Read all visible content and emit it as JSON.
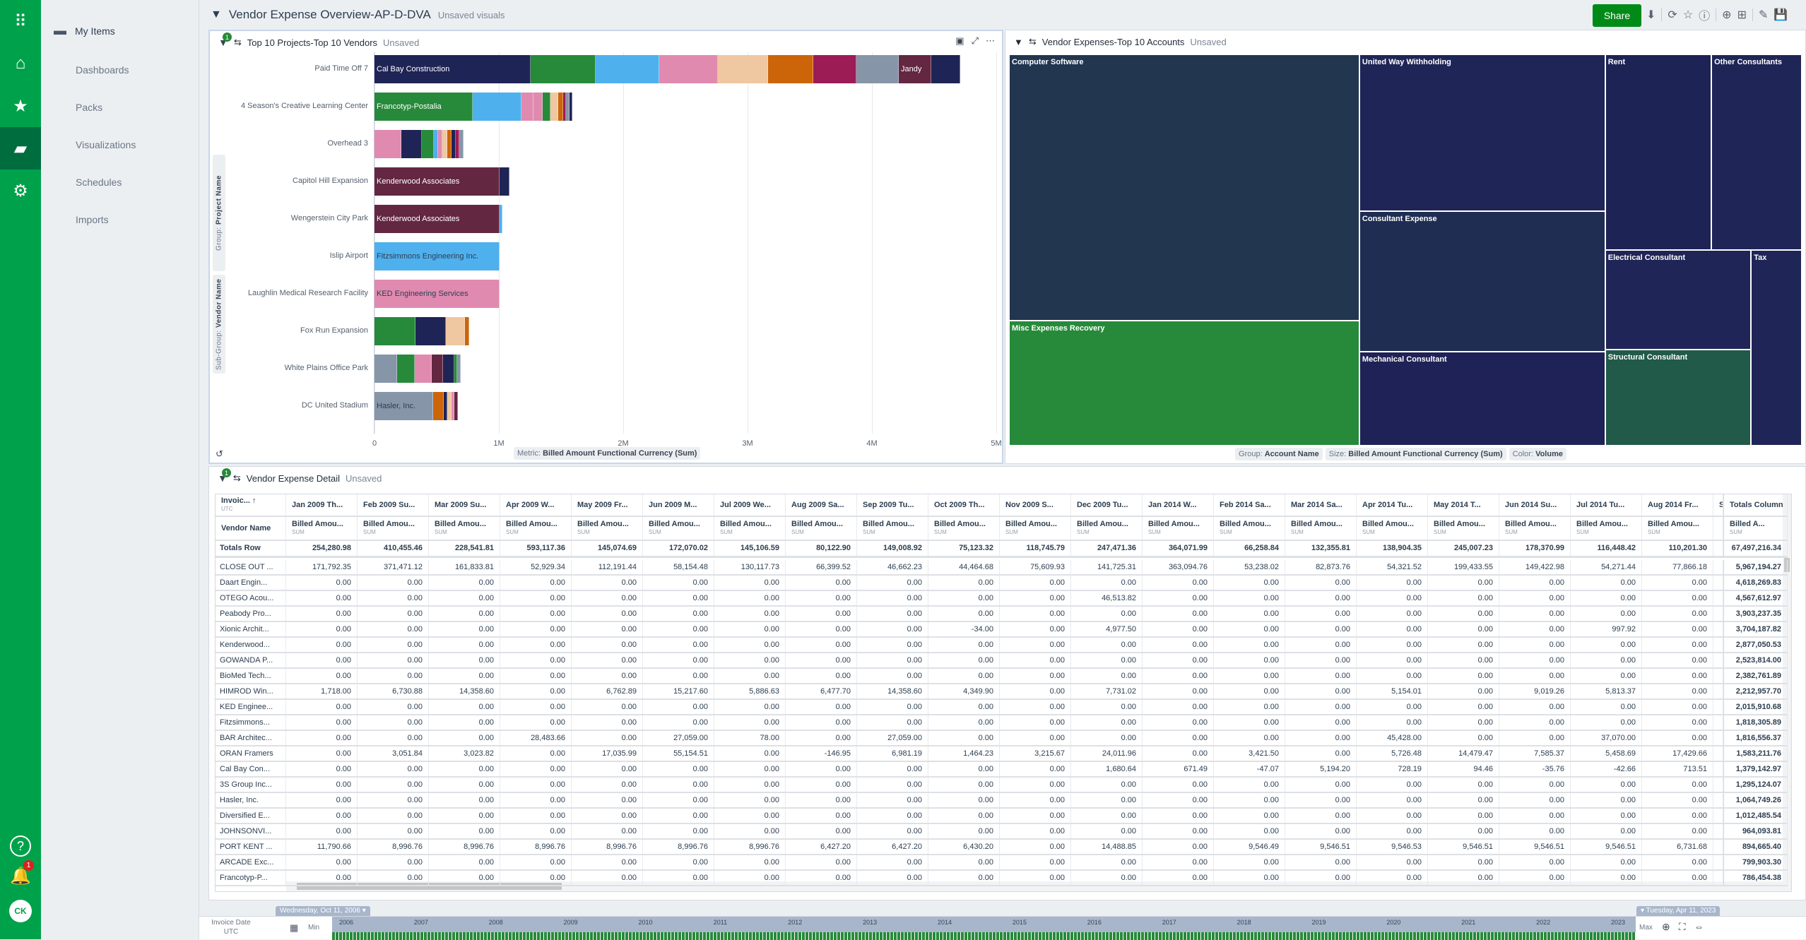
{
  "rail": {
    "icons": [
      "apps-grid-icon",
      "home-icon",
      "star-icon",
      "folder-icon",
      "gear-icon"
    ],
    "help": "?",
    "notifications": "1",
    "avatar": "CK"
  },
  "nav": {
    "my_items": "My Items",
    "items": [
      "Dashboards",
      "Packs",
      "Visualizations",
      "Schedules",
      "Imports"
    ]
  },
  "header": {
    "title": "Vendor Expense Overview-AP-D-DVA",
    "status": "Unsaved visuals",
    "share": "Share"
  },
  "colors": {
    "brand": "#00a14b",
    "share": "#008a17",
    "navy": "#1f2456",
    "green": "#278a3a",
    "blue": "#4fb0ee",
    "pink": "#e08ab0",
    "peach": "#efc7a0",
    "orange": "#cc6509",
    "magenta": "#9c1c56",
    "gray": "#8795a8",
    "maroon": "#632742"
  },
  "bar_panel": {
    "title": "Top 10 Projects-Top 10 Vendors",
    "status": "Unsaved",
    "filter_count": "1",
    "group_label": "Group:",
    "group_value": "Project Name",
    "subgroup_label": "Sub-Group:",
    "subgroup_value": "Vendor Name",
    "metric_label": "Metric:",
    "metric_value": "Billed Amount Functional Currency (Sum)"
  },
  "chart_data": {
    "type": "bar",
    "orientation": "horizontal",
    "stacked": true,
    "title": "Top 10 Projects-Top 10 Vendors",
    "xlabel": "Billed Amount Functional Currency (Sum)",
    "ylabel": "Project Name",
    "xlim": [
      0,
      5000000
    ],
    "xticks": [
      "0",
      "1M",
      "2M",
      "3M",
      "4M",
      "5M"
    ],
    "categories": [
      "Paid Time Off 7",
      "4 Season's Creative Learning Center",
      "Overhead 3",
      "Capitol Hill Expansion",
      "Wengerstein City Park",
      "Islip Airport",
      "Laughlin Medical Research Facility",
      "Fox Run Expansion",
      "White Plains Office Park",
      "DC United Stadium"
    ],
    "stacks": [
      [
        {
          "c": "navy",
          "v": 1253000,
          "label": "Cal Bay Construction"
        },
        {
          "c": "green",
          "v": 527000
        },
        {
          "c": "blue",
          "v": 510000
        },
        {
          "c": "pink",
          "v": 469000
        },
        {
          "c": "peach",
          "v": 404000
        },
        {
          "c": "orange",
          "v": 363000
        },
        {
          "c": "magenta",
          "v": 347000
        },
        {
          "c": "gray",
          "v": 343000
        },
        {
          "c": "maroon",
          "v": 261000,
          "label": "Jandy"
        },
        {
          "c": "navy",
          "v": 233000
        }
      ],
      [
        {
          "c": "green",
          "v": 788000,
          "label": "Francotyp-Postalia"
        },
        {
          "c": "blue",
          "v": 396000
        },
        {
          "c": "pink",
          "v": 94000
        },
        {
          "c": "pink",
          "v": 73000
        },
        {
          "c": "green",
          "v": 61000
        },
        {
          "c": "peach",
          "v": 65000
        },
        {
          "c": "orange",
          "v": 41000
        },
        {
          "c": "magenta",
          "v": 24000
        },
        {
          "c": "gray",
          "v": 24000
        },
        {
          "c": "navy",
          "v": 12000
        }
      ],
      [
        {
          "c": "pink",
          "v": 216000
        },
        {
          "c": "navy",
          "v": 167000
        },
        {
          "c": "green",
          "v": 94000
        },
        {
          "c": "blue",
          "v": 37000
        },
        {
          "c": "pink",
          "v": 33000
        },
        {
          "c": "peach",
          "v": 41000
        },
        {
          "c": "orange",
          "v": 33000
        },
        {
          "c": "navy",
          "v": 33000
        },
        {
          "c": "magenta",
          "v": 29000
        },
        {
          "c": "gray",
          "v": 33000
        }
      ],
      [
        {
          "c": "maroon",
          "v": 1004000,
          "label": "Kenderwood Associates"
        },
        {
          "c": "navy",
          "v": 82000
        }
      ],
      [
        {
          "c": "maroon",
          "v": 1008000,
          "label": "Kenderwood Associates"
        },
        {
          "c": "blue",
          "v": 8000
        }
      ],
      [
        {
          "c": "blue",
          "v": 1004000,
          "label": "Fitzsimmons Engineering Inc."
        }
      ],
      [
        {
          "c": "pink",
          "v": 1004000,
          "label": "KED Engineering Services"
        }
      ],
      [
        {
          "c": "green",
          "v": 327000
        },
        {
          "c": "navy",
          "v": 249000
        },
        {
          "c": "peach",
          "v": 151000
        },
        {
          "c": "orange",
          "v": 33000
        }
      ],
      [
        {
          "c": "gray",
          "v": 184000
        },
        {
          "c": "green",
          "v": 139000
        },
        {
          "c": "pink",
          "v": 139000
        },
        {
          "c": "maroon",
          "v": 90000
        },
        {
          "c": "navy",
          "v": 90000
        },
        {
          "c": "green",
          "v": 24000
        },
        {
          "c": "gray",
          "v": 29000
        }
      ],
      [
        {
          "c": "gray",
          "v": 473000,
          "label": "Hasler, Inc."
        },
        {
          "c": "orange",
          "v": 82000
        },
        {
          "c": "navy",
          "v": 33000
        },
        {
          "c": "peach",
          "v": 33000
        },
        {
          "c": "pink",
          "v": 20000
        },
        {
          "c": "maroon",
          "v": 29000
        }
      ]
    ]
  },
  "treemap": {
    "title": "Vendor Expenses-Top 10 Accounts",
    "status": "Unsaved",
    "cells": [
      {
        "name": "Computer Software",
        "color": "#22364f",
        "rank": 1
      },
      {
        "name": "Misc Expenses Recovery",
        "color": "#278a3a",
        "rank": 2
      },
      {
        "name": "United Way Withholding",
        "color": "#1f2556",
        "rank": 3
      },
      {
        "name": "Consultant Expense",
        "color": "#1f2d52",
        "rank": 4
      },
      {
        "name": "Mechanical Consultant",
        "color": "#1f2256",
        "rank": 5
      },
      {
        "name": "Rent",
        "color": "#1e2355",
        "rank": 6
      },
      {
        "name": "Other Consultants",
        "color": "#1f2556",
        "rank": 7
      },
      {
        "name": "Electrical Consultant",
        "color": "#1f2556",
        "rank": 8
      },
      {
        "name": "Structural Consultant",
        "color": "#215a48",
        "rank": 9
      },
      {
        "name": "Tax",
        "color": "#1f2556",
        "rank": 10
      }
    ],
    "group_label": "Group:",
    "group_value": "Account Name",
    "size_label": "Size:",
    "size_value": "Billed Amount Functional Currency (Sum)",
    "color_label": "Color:",
    "color_value": "Volume"
  },
  "table": {
    "title": "Vendor Expense Detail",
    "status": "Unsaved",
    "filter_count": "1",
    "corner_top": "Invoic...",
    "corner_sub": "UTC",
    "corner_bottom": "Vendor Name",
    "months": [
      "Jan 2009 Th...",
      "Feb 2009 Su...",
      "Mar 2009 Su...",
      "Apr 2009 W...",
      "May 2009 Fr...",
      "Jun 2009 M...",
      "Jul 2009 We...",
      "Aug 2009 Sa...",
      "Sep 2009 Tu...",
      "Oct 2009 Th...",
      "Nov 2009 S...",
      "Dec 2009 Tu...",
      "Jan 2014 W...",
      "Feb 2014 Sa...",
      "Mar 2014 Sa...",
      "Apr 2014 Tu...",
      "May 2014 T...",
      "Jun 2014 Su...",
      "Jul 2014 Tu...",
      "Aug 2014 Fr..."
    ],
    "partial_col": "Sep",
    "measure": "Billed Amou...",
    "measure_total": "Billed A...",
    "agg": "SUM",
    "totals_col": "Totals Column",
    "totals_row": {
      "name": "Totals Row",
      "values": [
        "254,280.98",
        "410,455.46",
        "228,541.81",
        "593,117.36",
        "145,074.69",
        "172,070.02",
        "145,106.59",
        "80,122.90",
        "149,008.92",
        "75,123.32",
        "118,745.79",
        "247,471.36",
        "364,071.99",
        "66,258.84",
        "132,355.81",
        "138,904.35",
        "245,007.23",
        "178,370.99",
        "116,448.42",
        "110,201.30"
      ],
      "total": "67,497,216.34"
    },
    "rows": [
      {
        "name": "CLOSE OUT ...",
        "values": [
          "171,792.35",
          "371,471.12",
          "161,833.81",
          "52,929.34",
          "112,191.44",
          "58,154.48",
          "130,117.73",
          "66,399.52",
          "46,662.23",
          "44,464.68",
          "75,609.93",
          "141,725.31",
          "363,094.76",
          "53,238.02",
          "82,873.76",
          "54,321.52",
          "199,433.55",
          "149,422.98",
          "54,271.44",
          "77,866.18"
        ],
        "total": "5,967,194.27"
      },
      {
        "name": "Daart Engin...",
        "values": [
          "0.00",
          "0.00",
          "0.00",
          "0.00",
          "0.00",
          "0.00",
          "0.00",
          "0.00",
          "0.00",
          "0.00",
          "0.00",
          "0.00",
          "0.00",
          "0.00",
          "0.00",
          "0.00",
          "0.00",
          "0.00",
          "0.00",
          "0.00"
        ],
        "total": "4,618,269.83"
      },
      {
        "name": "OTEGO Acou...",
        "values": [
          "0.00",
          "0.00",
          "0.00",
          "0.00",
          "0.00",
          "0.00",
          "0.00",
          "0.00",
          "0.00",
          "0.00",
          "0.00",
          "46,513.82",
          "0.00",
          "0.00",
          "0.00",
          "0.00",
          "0.00",
          "0.00",
          "0.00",
          "0.00"
        ],
        "total": "4,567,612.97"
      },
      {
        "name": "Peabody Pro...",
        "values": [
          "0.00",
          "0.00",
          "0.00",
          "0.00",
          "0.00",
          "0.00",
          "0.00",
          "0.00",
          "0.00",
          "0.00",
          "0.00",
          "0.00",
          "0.00",
          "0.00",
          "0.00",
          "0.00",
          "0.00",
          "0.00",
          "0.00",
          "0.00"
        ],
        "total": "3,903,237.35"
      },
      {
        "name": "Xionic Archit...",
        "values": [
          "0.00",
          "0.00",
          "0.00",
          "0.00",
          "0.00",
          "0.00",
          "0.00",
          "0.00",
          "0.00",
          "-34.00",
          "0.00",
          "4,977.50",
          "0.00",
          "0.00",
          "0.00",
          "0.00",
          "0.00",
          "0.00",
          "997.92",
          "0.00"
        ],
        "total": "3,704,187.82"
      },
      {
        "name": "Kenderwood...",
        "values": [
          "0.00",
          "0.00",
          "0.00",
          "0.00",
          "0.00",
          "0.00",
          "0.00",
          "0.00",
          "0.00",
          "0.00",
          "0.00",
          "0.00",
          "0.00",
          "0.00",
          "0.00",
          "0.00",
          "0.00",
          "0.00",
          "0.00",
          "0.00"
        ],
        "total": "2,877,050.53"
      },
      {
        "name": "GOWANDA P...",
        "values": [
          "0.00",
          "0.00",
          "0.00",
          "0.00",
          "0.00",
          "0.00",
          "0.00",
          "0.00",
          "0.00",
          "0.00",
          "0.00",
          "0.00",
          "0.00",
          "0.00",
          "0.00",
          "0.00",
          "0.00",
          "0.00",
          "0.00",
          "0.00"
        ],
        "total": "2,523,814.00"
      },
      {
        "name": "BioMed Tech...",
        "values": [
          "0.00",
          "0.00",
          "0.00",
          "0.00",
          "0.00",
          "0.00",
          "0.00",
          "0.00",
          "0.00",
          "0.00",
          "0.00",
          "0.00",
          "0.00",
          "0.00",
          "0.00",
          "0.00",
          "0.00",
          "0.00",
          "0.00",
          "0.00"
        ],
        "total": "2,382,761.89"
      },
      {
        "name": "HIMROD Win...",
        "values": [
          "1,718.00",
          "6,730.88",
          "14,358.60",
          "0.00",
          "6,762.89",
          "15,217.60",
          "5,886.63",
          "6,477.70",
          "14,358.60",
          "4,349.90",
          "0.00",
          "7,731.02",
          "0.00",
          "0.00",
          "0.00",
          "5,154.01",
          "0.00",
          "9,019.26",
          "5,813.37",
          "0.00"
        ],
        "total": "2,212,957.70"
      },
      {
        "name": "KED Enginee...",
        "values": [
          "0.00",
          "0.00",
          "0.00",
          "0.00",
          "0.00",
          "0.00",
          "0.00",
          "0.00",
          "0.00",
          "0.00",
          "0.00",
          "0.00",
          "0.00",
          "0.00",
          "0.00",
          "0.00",
          "0.00",
          "0.00",
          "0.00",
          "0.00"
        ],
        "total": "2,015,910.68"
      },
      {
        "name": "Fitzsimmons...",
        "values": [
          "0.00",
          "0.00",
          "0.00",
          "0.00",
          "0.00",
          "0.00",
          "0.00",
          "0.00",
          "0.00",
          "0.00",
          "0.00",
          "0.00",
          "0.00",
          "0.00",
          "0.00",
          "0.00",
          "0.00",
          "0.00",
          "0.00",
          "0.00"
        ],
        "total": "1,818,305.89"
      },
      {
        "name": "BAR Architec...",
        "values": [
          "0.00",
          "0.00",
          "0.00",
          "28,483.66",
          "0.00",
          "27,059.00",
          "78.00",
          "0.00",
          "27,059.00",
          "0.00",
          "0.00",
          "0.00",
          "0.00",
          "0.00",
          "0.00",
          "45,428.00",
          "0.00",
          "0.00",
          "37,070.00",
          "0.00"
        ],
        "total": "1,816,556.37"
      },
      {
        "name": "ORAN Framers",
        "values": [
          "0.00",
          "3,051.84",
          "3,023.82",
          "0.00",
          "17,035.99",
          "55,154.51",
          "0.00",
          "-146.95",
          "6,981.19",
          "1,464.23",
          "3,215.67",
          "24,011.96",
          "0.00",
          "3,421.50",
          "0.00",
          "5,726.48",
          "14,479.47",
          "7,585.37",
          "5,458.69",
          "17,429.66"
        ],
        "total": "1,583,211.76"
      },
      {
        "name": "Cal Bay Con...",
        "values": [
          "0.00",
          "0.00",
          "0.00",
          "0.00",
          "0.00",
          "0.00",
          "0.00",
          "0.00",
          "0.00",
          "0.00",
          "0.00",
          "1,680.64",
          "671.49",
          "-47.07",
          "5,194.20",
          "728.19",
          "94.46",
          "-35.76",
          "-42.66",
          "713.51"
        ],
        "total": "1,379,142.97"
      },
      {
        "name": "3S Group Inc...",
        "values": [
          "0.00",
          "0.00",
          "0.00",
          "0.00",
          "0.00",
          "0.00",
          "0.00",
          "0.00",
          "0.00",
          "0.00",
          "0.00",
          "0.00",
          "0.00",
          "0.00",
          "0.00",
          "0.00",
          "0.00",
          "0.00",
          "0.00",
          "0.00"
        ],
        "total": "1,295,124.07"
      },
      {
        "name": "Hasler, Inc.",
        "values": [
          "0.00",
          "0.00",
          "0.00",
          "0.00",
          "0.00",
          "0.00",
          "0.00",
          "0.00",
          "0.00",
          "0.00",
          "0.00",
          "0.00",
          "0.00",
          "0.00",
          "0.00",
          "0.00",
          "0.00",
          "0.00",
          "0.00",
          "0.00"
        ],
        "total": "1,064,749.26"
      },
      {
        "name": "Diversified E...",
        "values": [
          "0.00",
          "0.00",
          "0.00",
          "0.00",
          "0.00",
          "0.00",
          "0.00",
          "0.00",
          "0.00",
          "0.00",
          "0.00",
          "0.00",
          "0.00",
          "0.00",
          "0.00",
          "0.00",
          "0.00",
          "0.00",
          "0.00",
          "0.00"
        ],
        "total": "1,012,485.54"
      },
      {
        "name": "JOHNSONVI...",
        "values": [
          "0.00",
          "0.00",
          "0.00",
          "0.00",
          "0.00",
          "0.00",
          "0.00",
          "0.00",
          "0.00",
          "0.00",
          "0.00",
          "0.00",
          "0.00",
          "0.00",
          "0.00",
          "0.00",
          "0.00",
          "0.00",
          "0.00",
          "0.00"
        ],
        "total": "964,093.81"
      },
      {
        "name": "PORT KENT ...",
        "values": [
          "11,790.66",
          "8,996.76",
          "8,996.76",
          "8,996.76",
          "8,996.76",
          "8,996.76",
          "8,996.76",
          "6,427.20",
          "6,427.20",
          "6,430.20",
          "0.00",
          "14,488.85",
          "0.00",
          "9,546.49",
          "9,546.51",
          "9,546.53",
          "9,546.51",
          "9,546.51",
          "9,546.51",
          "6,731.68"
        ],
        "total": "894,665.40"
      },
      {
        "name": "ARCADE Exc...",
        "values": [
          "0.00",
          "0.00",
          "0.00",
          "0.00",
          "0.00",
          "0.00",
          "0.00",
          "0.00",
          "0.00",
          "0.00",
          "0.00",
          "0.00",
          "0.00",
          "0.00",
          "0.00",
          "0.00",
          "0.00",
          "0.00",
          "0.00",
          "0.00"
        ],
        "total": "799,903.30"
      },
      {
        "name": "Francotyp-P...",
        "values": [
          "0.00",
          "0.00",
          "0.00",
          "0.00",
          "0.00",
          "0.00",
          "0.00",
          "0.00",
          "0.00",
          "0.00",
          "0.00",
          "0.00",
          "0.00",
          "0.00",
          "0.00",
          "0.00",
          "0.00",
          "0.00",
          "0.00",
          "0.00"
        ],
        "total": "786,454.38"
      }
    ]
  },
  "timeline": {
    "label": "Invoice Date",
    "label_sub": "UTC",
    "min": "Min",
    "max": "Max",
    "start": "Wednesday, Oct 11, 2006",
    "end": "Tuesday, Apr 11, 2023",
    "years": [
      "2006",
      "2007",
      "2008",
      "2009",
      "2010",
      "2011",
      "2012",
      "2013",
      "2014",
      "2015",
      "2016",
      "2017",
      "2018",
      "2019",
      "2020",
      "2021",
      "2022",
      "2023"
    ]
  }
}
